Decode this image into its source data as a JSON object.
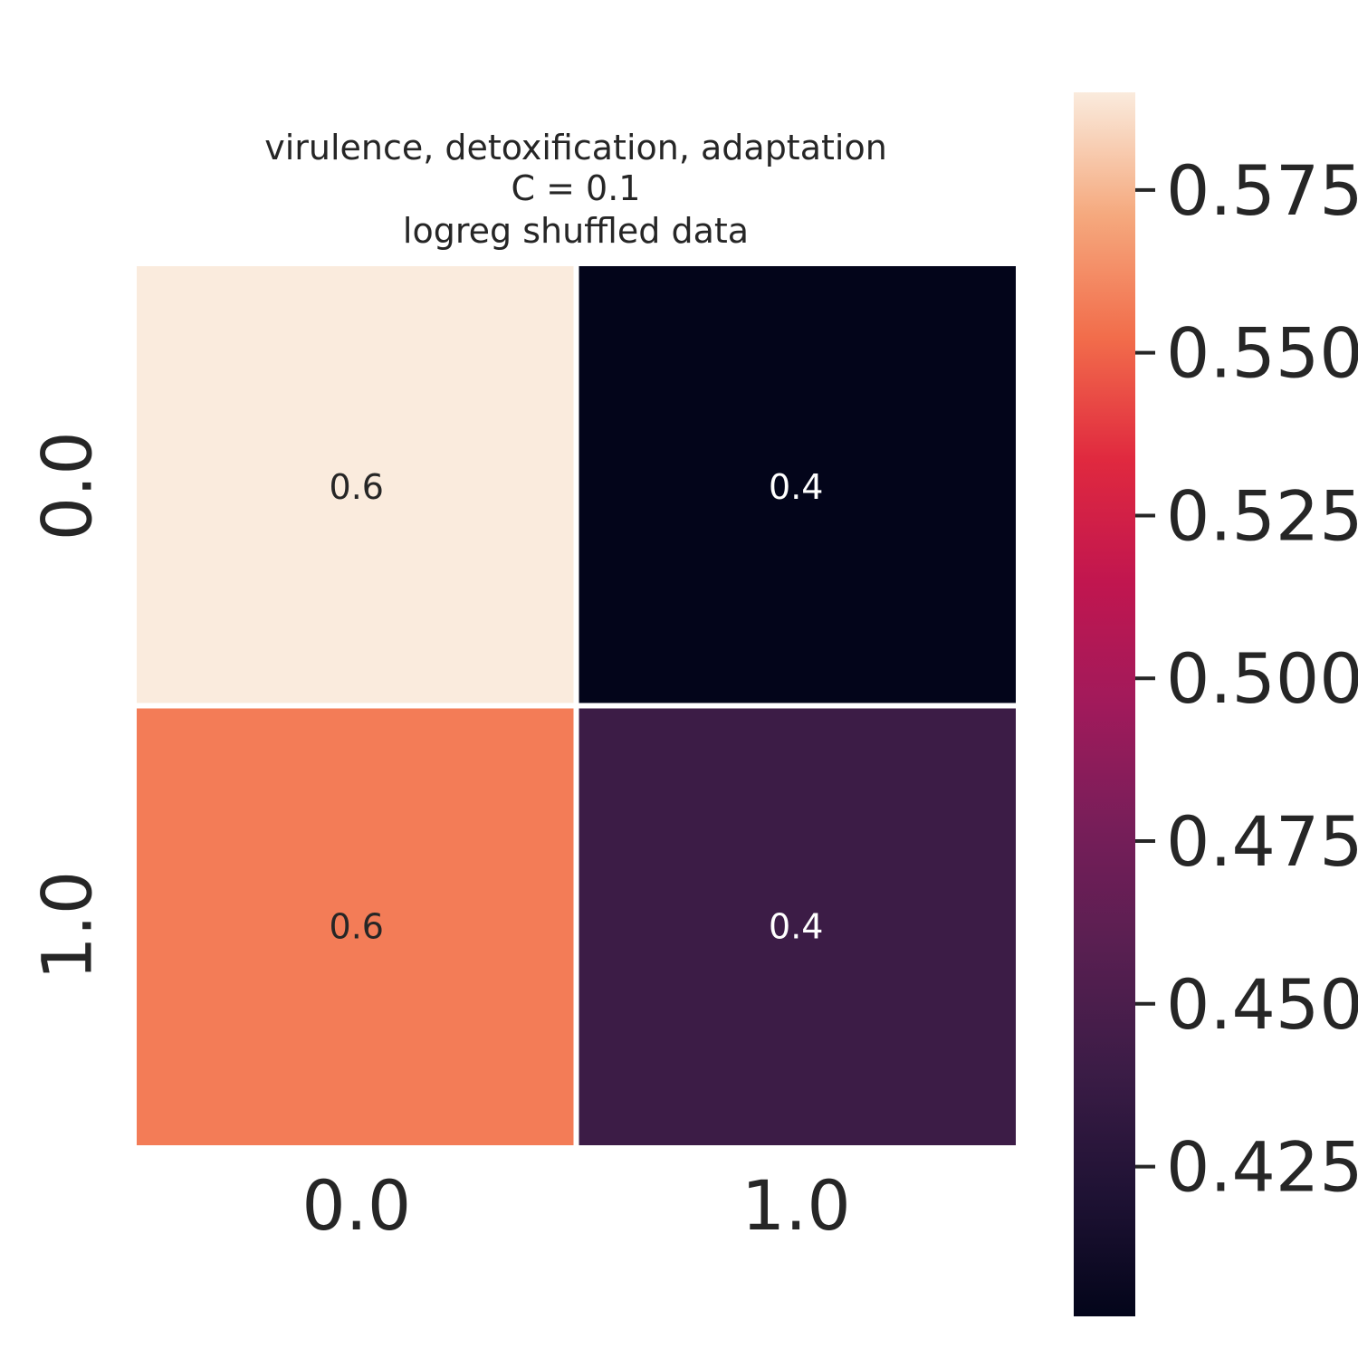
{
  "chart_data": {
    "type": "heatmap",
    "title_lines": [
      "virulence, detoxification, adaptation",
      "C = 0.1",
      "logreg shuffled data"
    ],
    "row_labels": [
      "0.0",
      "1.0"
    ],
    "col_labels": [
      "0.0",
      "1.0"
    ],
    "values": [
      [
        0.59,
        0.402
      ],
      [
        0.557,
        0.44
      ]
    ],
    "annotations": [
      [
        "0.6",
        "0.4"
      ],
      [
        "0.6",
        "0.4"
      ]
    ],
    "colorbar": {
      "range": [
        0.402,
        0.59
      ],
      "ticks": [
        0.425,
        0.45,
        0.475,
        0.5,
        0.525,
        0.55,
        0.575
      ],
      "tick_labels": [
        "0.425",
        "0.450",
        "0.475",
        "0.500",
        "0.525",
        "0.550",
        "0.575"
      ]
    },
    "colormap": "rocket",
    "colors": {
      "text_dark": "#262626",
      "text_light": "#ffffff",
      "gridline": "#ffffff"
    }
  }
}
